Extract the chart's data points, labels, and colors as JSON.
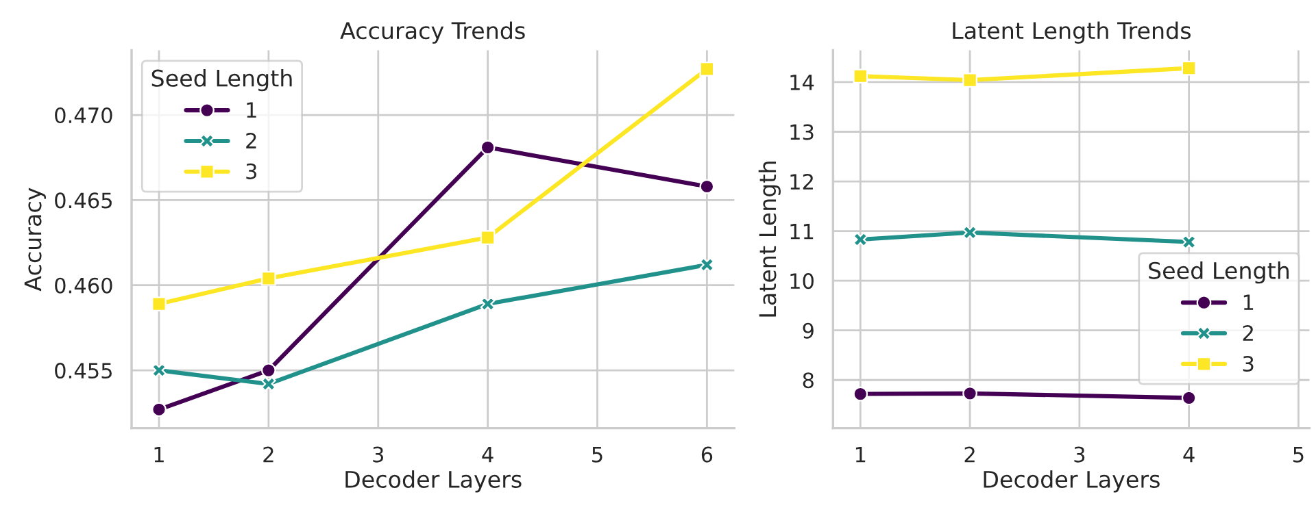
{
  "chart_data": [
    {
      "type": "line",
      "title": "Accuracy Trends",
      "xlabel": "Decoder Layers",
      "ylabel": "Accuracy",
      "legend_title": "Seed Length",
      "legend": "top left",
      "grid": true,
      "xlim": [
        0.75,
        6.25
      ],
      "xticks": [
        1,
        2,
        3,
        4,
        5,
        6
      ],
      "ylim": [
        0.4516,
        0.4738
      ],
      "yticks": [
        {
          "value": 0.455,
          "label": "0.455"
        },
        {
          "value": 0.46,
          "label": "0.460"
        },
        {
          "value": 0.465,
          "label": "0.465"
        },
        {
          "value": 0.47,
          "label": "0.470"
        }
      ],
      "x": [
        1,
        2,
        4,
        6
      ],
      "series": [
        {
          "name": "1",
          "color": "#440154",
          "marker": "circle",
          "values": [
            0.4527,
            0.455,
            0.4681,
            0.4658
          ]
        },
        {
          "name": "2",
          "color": "#21918c",
          "marker": "cross",
          "values": [
            0.455,
            0.4542,
            0.4589,
            0.4612
          ]
        },
        {
          "name": "3",
          "color": "#fde725",
          "marker": "square",
          "values": [
            0.4589,
            0.4604,
            0.4628,
            0.4727
          ]
        }
      ]
    },
    {
      "type": "line",
      "title": "Latent Length Trends",
      "xlabel": "Decoder Layers",
      "ylabel": "Latent Length",
      "legend_title": "Seed Length",
      "legend": "right",
      "grid": true,
      "xlim": [
        0.75,
        5.1
      ],
      "xticks": [
        1,
        2,
        3,
        4,
        5
      ],
      "ylim": [
        7.03,
        14.64
      ],
      "yticks": [
        8,
        9,
        10,
        11,
        12,
        13,
        14
      ],
      "x": [
        1,
        2,
        4
      ],
      "series": [
        {
          "name": "1",
          "color": "#440154",
          "marker": "circle",
          "values": [
            7.72,
            7.73,
            7.64
          ]
        },
        {
          "name": "2",
          "color": "#21918c",
          "marker": "cross",
          "values": [
            10.83,
            10.97,
            10.78
          ]
        },
        {
          "name": "3",
          "color": "#fde725",
          "marker": "square",
          "values": [
            14.12,
            14.04,
            14.28
          ]
        }
      ]
    }
  ]
}
